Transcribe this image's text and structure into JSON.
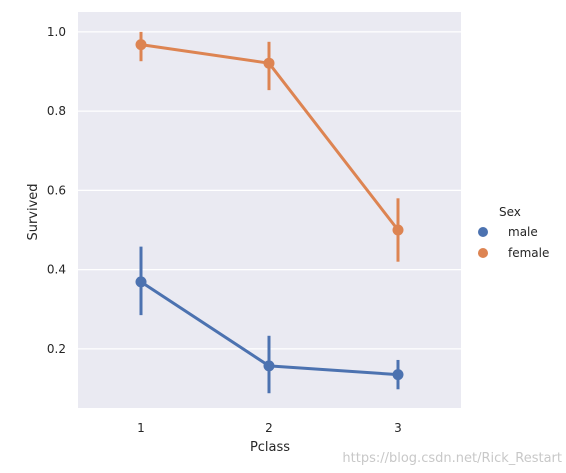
{
  "chart_data": {
    "type": "line",
    "xlabel": "Pclass",
    "ylabel": "Survived",
    "categories": [
      "1",
      "2",
      "3"
    ],
    "ylim": [
      0.04,
      1.05
    ],
    "yticks": [
      "0.2",
      "0.4",
      "0.6",
      "0.8",
      "1.0"
    ],
    "grid": true,
    "legend": {
      "title": "Sex",
      "position": "right"
    },
    "series": [
      {
        "name": "male",
        "color": "#4c72b0",
        "values": [
          0.369,
          0.157,
          0.135
        ],
        "ci": [
          [
            0.285,
            0.458
          ],
          [
            0.088,
            0.233
          ],
          [
            0.098,
            0.172
          ]
        ]
      },
      {
        "name": "female",
        "color": "#dd8452",
        "values": [
          0.968,
          0.921,
          0.5
        ],
        "ci": [
          [
            0.926,
            1.0
          ],
          [
            0.853,
            0.975
          ],
          [
            0.42,
            0.58
          ]
        ]
      }
    ]
  },
  "watermark": "https://blog.csdn.net/Rick_Restart"
}
